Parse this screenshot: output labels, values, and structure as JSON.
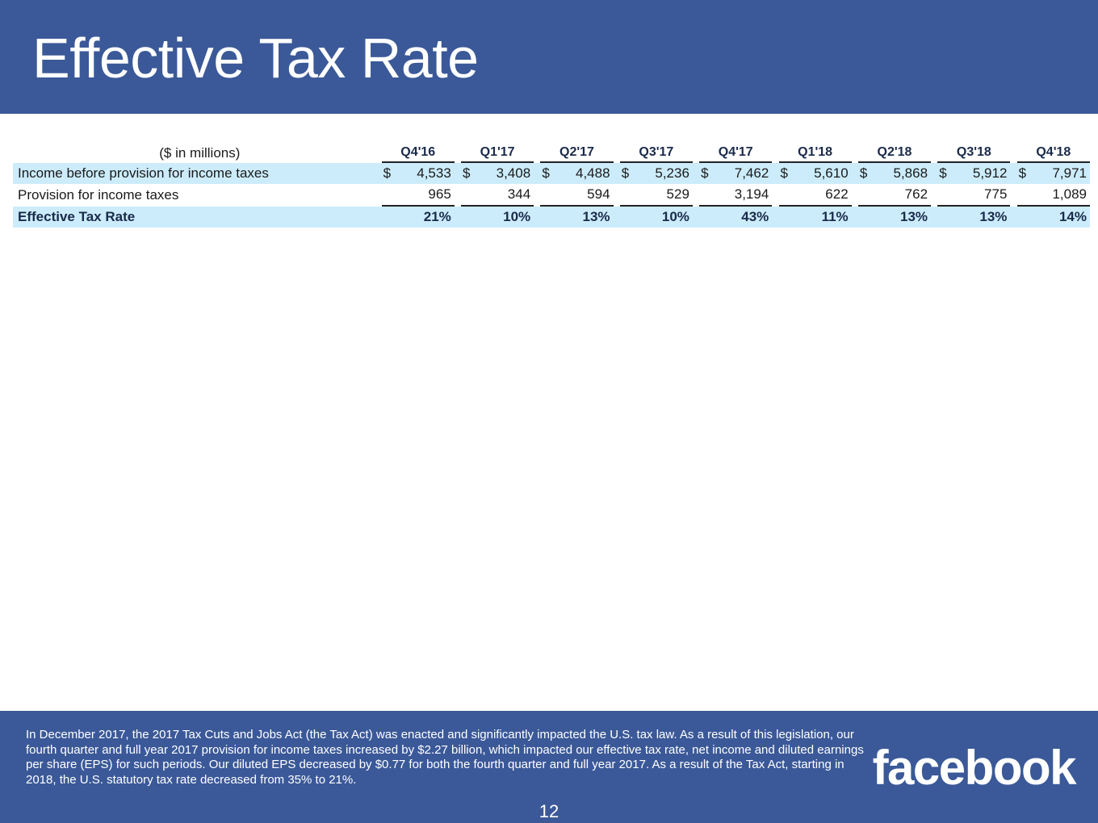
{
  "title": "Effective Tax Rate",
  "table": {
    "unit_label": "($ in millions)",
    "currency": "$",
    "quarters": [
      "Q4'16",
      "Q1'17",
      "Q2'17",
      "Q3'17",
      "Q4'17",
      "Q1'18",
      "Q2'18",
      "Q3'18",
      "Q4'18"
    ],
    "rows": {
      "income": {
        "label": "Income before provision for income taxes",
        "values": [
          "4,533",
          "3,408",
          "4,488",
          "5,236",
          "7,462",
          "5,610",
          "5,868",
          "5,912",
          "7,971"
        ]
      },
      "provision": {
        "label": "Provision for income taxes",
        "values": [
          "965",
          "344",
          "594",
          "529",
          "3,194",
          "622",
          "762",
          "775",
          "1,089"
        ]
      },
      "etr": {
        "label": "Effective Tax Rate",
        "values": [
          "21%",
          "10%",
          "13%",
          "10%",
          "43%",
          "11%",
          "13%",
          "13%",
          "14%"
        ]
      }
    }
  },
  "footnote": "In December 2017, the 2017 Tax Cuts and Jobs Act (the Tax Act) was enacted and significantly impacted the U.S. tax law. As a result of this legislation, our fourth quarter and full year 2017 provision for income taxes increased by $2.27 billion, which impacted our effective tax rate, net income and diluted earnings per share (EPS) for such periods. Our diluted EPS decreased by $0.77 for both the fourth quarter and full year 2017. As a result of the Tax Act, starting in 2018, the U.S. statutory tax rate decreased from 35% to 21%.",
  "logo_text": "facebook",
  "page_number": "12",
  "colors": {
    "brand_blue": "#3b5998",
    "row_highlight": "#ccecfb"
  }
}
